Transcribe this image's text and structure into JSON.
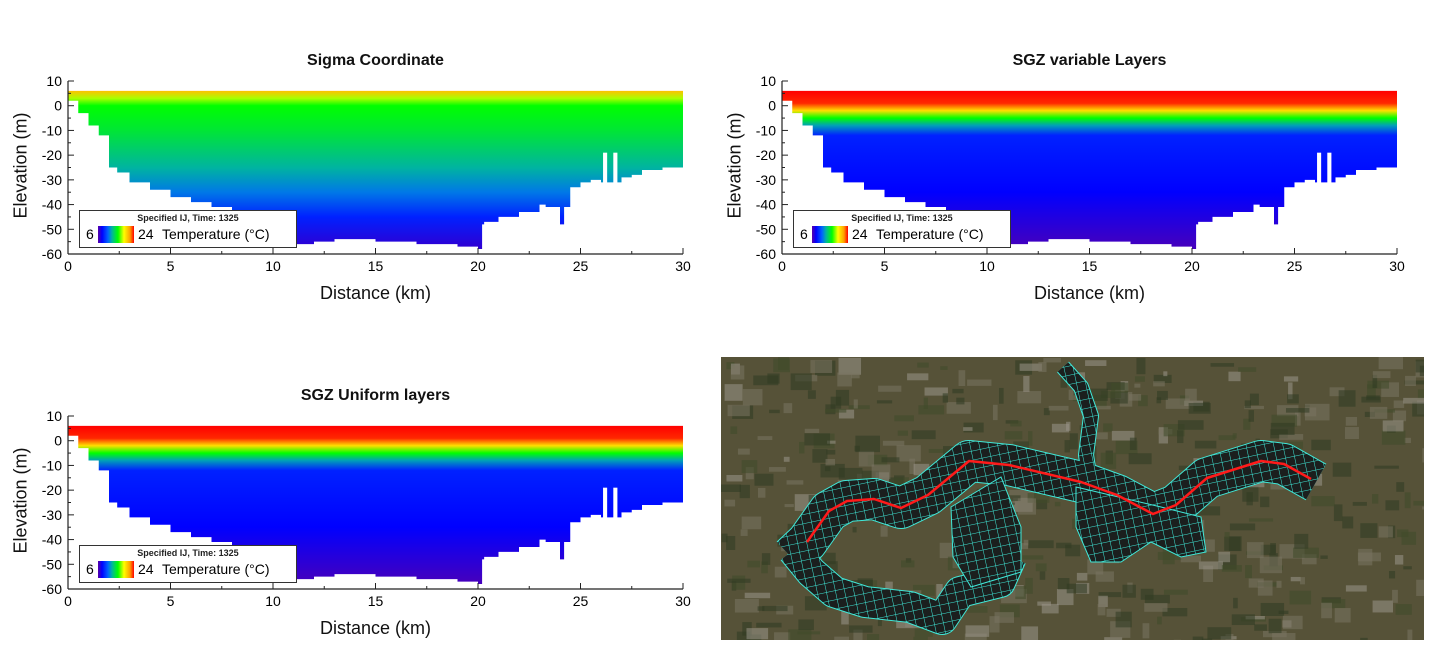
{
  "colorbar": {
    "title": "Specified IJ, Time: 1325",
    "min_label": "6",
    "max_label": "24",
    "quantity": "Temperature (°C)",
    "colormap": [
      [
        6,
        "#5a00a8"
      ],
      [
        8,
        "#0000ff"
      ],
      [
        11,
        "#0064ff"
      ],
      [
        13,
        "#00b4a0"
      ],
      [
        16,
        "#00ff00"
      ],
      [
        19,
        "#ffff00"
      ],
      [
        22,
        "#ffa000"
      ],
      [
        24,
        "#ff0000"
      ]
    ]
  },
  "chart_data": [
    {
      "type": "heatmap",
      "title": "Sigma Coordinate",
      "xlabel": "Distance (km)",
      "ylabel": "Elevation (m)",
      "xlim": [
        0,
        30
      ],
      "ylim": [
        -60,
        10
      ],
      "xticks": [
        0,
        5,
        10,
        15,
        20,
        25,
        30
      ],
      "yticks": [
        10,
        0,
        -10,
        -20,
        -30,
        -40,
        -50,
        -60
      ],
      "water_surface": 6,
      "temperature_vs_elevation": [
        [
          6,
          21
        ],
        [
          3,
          18
        ],
        [
          0,
          16
        ],
        [
          -10,
          15
        ],
        [
          -25,
          13
        ],
        [
          -35,
          11.5
        ],
        [
          -45,
          9
        ],
        [
          -57,
          7
        ]
      ]
    },
    {
      "type": "heatmap",
      "title": "SGZ variable Layers",
      "xlabel": "Distance (km)",
      "ylabel": "Elevation (m)",
      "xlim": [
        0,
        30
      ],
      "ylim": [
        -60,
        10
      ],
      "xticks": [
        0,
        5,
        10,
        15,
        20,
        25,
        30
      ],
      "yticks": [
        10,
        0,
        -10,
        -20,
        -30,
        -40,
        -50,
        -60
      ],
      "water_surface": 6,
      "temperature_vs_elevation": [
        [
          6,
          24
        ],
        [
          1,
          23.5
        ],
        [
          -2,
          20
        ],
        [
          -5,
          16
        ],
        [
          -8,
          12.5
        ],
        [
          -12,
          9
        ],
        [
          -35,
          8
        ],
        [
          -57,
          6.5
        ]
      ]
    },
    {
      "type": "heatmap",
      "title": "SGZ Uniform layers",
      "xlabel": "Distance (km)",
      "ylabel": "Elevation (m)",
      "xlim": [
        0,
        30
      ],
      "ylim": [
        -60,
        10
      ],
      "xticks": [
        0,
        5,
        10,
        15,
        20,
        25,
        30
      ],
      "yticks": [
        10,
        0,
        -10,
        -20,
        -30,
        -40,
        -50,
        -60
      ],
      "water_surface": 6,
      "temperature_vs_elevation": [
        [
          6,
          24
        ],
        [
          1,
          23.5
        ],
        [
          -2,
          20
        ],
        [
          -5,
          16
        ],
        [
          -8,
          12.5
        ],
        [
          -12,
          9
        ],
        [
          -35,
          8
        ],
        [
          -57,
          6.5
        ]
      ]
    }
  ],
  "bed_profile": [
    [
      0,
      4
    ],
    [
      0.5,
      2
    ],
    [
      1,
      -3
    ],
    [
      1.5,
      -8
    ],
    [
      2,
      -12
    ],
    [
      2.4,
      -25
    ],
    [
      3,
      -27
    ],
    [
      4,
      -31
    ],
    [
      5,
      -34
    ],
    [
      6,
      -37
    ],
    [
      7,
      -39
    ],
    [
      8,
      -41
    ],
    [
      9,
      -44
    ],
    [
      10,
      -48
    ],
    [
      10.5,
      -52
    ],
    [
      11,
      -55
    ],
    [
      12,
      -56
    ],
    [
      13,
      -55
    ],
    [
      14,
      -54
    ],
    [
      15,
      -54
    ],
    [
      16,
      -55
    ],
    [
      17,
      -55
    ],
    [
      18,
      -56
    ],
    [
      19,
      -56
    ],
    [
      20,
      -57
    ],
    [
      20.2,
      -58
    ],
    [
      20.3,
      -48
    ],
    [
      21,
      -47
    ],
    [
      22,
      -45
    ],
    [
      23,
      -43
    ],
    [
      23.3,
      -40
    ],
    [
      24,
      -41
    ],
    [
      24.2,
      -48
    ],
    [
      24.5,
      -41
    ],
    [
      25,
      -33
    ],
    [
      25.5,
      -31
    ],
    [
      26,
      -30
    ],
    [
      27,
      -31
    ],
    [
      27.5,
      -29
    ],
    [
      28,
      -28
    ],
    [
      29,
      -26
    ],
    [
      30,
      -25
    ]
  ],
  "map": {
    "grid_color": "#40e8d8",
    "transect_color": "#ff1a1a"
  }
}
